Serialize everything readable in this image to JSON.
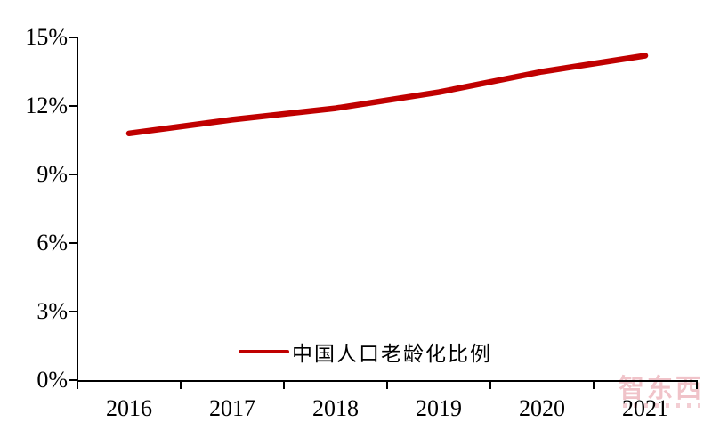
{
  "chart_data": {
    "type": "line",
    "title": "",
    "xlabel": "",
    "ylabel": "",
    "categories": [
      "2016",
      "2017",
      "2018",
      "2019",
      "2020",
      "2021"
    ],
    "series": [
      {
        "name": "中国人口老龄化比例",
        "values": [
          10.8,
          11.4,
          11.9,
          12.6,
          13.5,
          14.2
        ],
        "color": "#C00000"
      }
    ],
    "ylim": [
      0,
      15
    ],
    "ytick_step": 3,
    "ytick_labels": [
      "0%",
      "3%",
      "6%",
      "9%",
      "12%",
      "15%"
    ],
    "grid": false,
    "legend_position": "inside-bottom-center",
    "axis_color": "#000000"
  },
  "legend": {
    "label": "中国人口老龄化比例",
    "swatch_color": "#C00000"
  },
  "watermark": {
    "text": "智东西",
    "color": "#e4939e"
  }
}
